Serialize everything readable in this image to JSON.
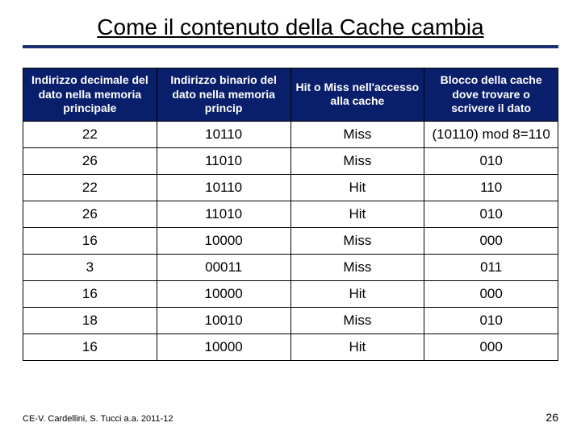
{
  "title": "Come il contenuto della Cache cambia",
  "headers": [
    "Indirizzo decimale del dato nella memoria principale",
    "Indirizzo binario del dato nella memoria princip",
    "Hit o Miss nell'accesso alla cache",
    "Blocco della cache dove trovare o scrivere il dato"
  ],
  "rows": [
    [
      "22",
      "10110",
      "Miss",
      "(10110) mod 8=110"
    ],
    [
      "26",
      "11010",
      "Miss",
      "010"
    ],
    [
      "22",
      "10110",
      "Hit",
      "110"
    ],
    [
      "26",
      "11010",
      "Hit",
      "010"
    ],
    [
      "16",
      "10000",
      "Miss",
      "000"
    ],
    [
      "3",
      "00011",
      "Miss",
      "011"
    ],
    [
      "16",
      "10000",
      "Hit",
      "000"
    ],
    [
      "18",
      "10010",
      "Miss",
      "010"
    ],
    [
      "16",
      "10000",
      "Hit",
      "000"
    ]
  ],
  "footer": "CE-V. Cardellini, S. Tucci a.a. 2011-12",
  "page": "26",
  "colors": {
    "header_bg": "#0a1f6b",
    "header_fg": "#ffffff",
    "rule": "#1d2f6f"
  }
}
